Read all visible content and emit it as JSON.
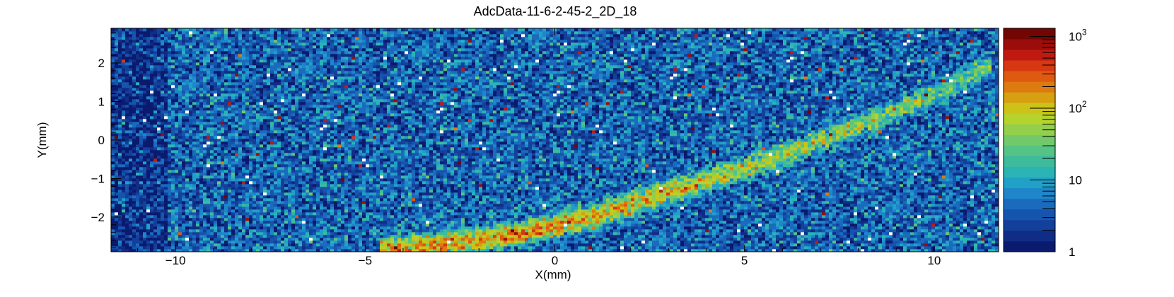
{
  "chart_data": {
    "type": "heatmap",
    "title": "AdcData-11-6-2-45-2_2D_18",
    "xlabel": "X(mm)",
    "ylabel": "Y(mm)",
    "xlim": [
      -11.7,
      11.7
    ],
    "ylim": [
      -2.9,
      2.9
    ],
    "x_ticks": [
      -10,
      -5,
      0,
      5,
      10
    ],
    "x_tick_labels": [
      "−10",
      "−5",
      "0",
      "5",
      "10"
    ],
    "y_ticks": [
      -2,
      -1,
      0,
      1,
      2
    ],
    "y_tick_labels": [
      "−2",
      "−1",
      "0",
      "1",
      "2"
    ],
    "z_scale": "log",
    "zlim": [
      1,
      1300
    ],
    "z_tick_labels": [
      {
        "value": 1,
        "base": "1",
        "exp": ""
      },
      {
        "value": 10,
        "base": "10",
        "exp": ""
      },
      {
        "value": 100,
        "base": "10",
        "exp": "2"
      },
      {
        "value": 1000,
        "base": "10",
        "exp": "3"
      }
    ],
    "palette": [
      "#0a1a6e",
      "#102d86",
      "#13409b",
      "#1655ad",
      "#1a6bbe",
      "#1f86c9",
      "#21a0c8",
      "#2ab4b6",
      "#3ebb9c",
      "#55c385",
      "#72c96a",
      "#93cf4a",
      "#b5d22d",
      "#cdc318",
      "#d6a010",
      "#dd7a10",
      "#de5a10",
      "#d63812",
      "#bf1a12",
      "#9a0d0a",
      "#730603"
    ],
    "track": {
      "points": [
        [
          -4.6,
          -2.82
        ],
        [
          -3.0,
          -2.7
        ],
        [
          -1.0,
          -2.45
        ],
        [
          1.0,
          -2.0
        ],
        [
          2.5,
          -1.5
        ],
        [
          4.0,
          -1.05
        ],
        [
          5.5,
          -0.55
        ],
        [
          7.0,
          0.0
        ],
        [
          8.5,
          0.55
        ],
        [
          10.0,
          1.2
        ],
        [
          11.5,
          1.95
        ]
      ],
      "peak_counts": [
        110,
        150,
        170,
        145,
        100,
        75,
        60,
        50,
        40,
        30,
        22
      ]
    },
    "background_level": 4,
    "grid": false
  }
}
